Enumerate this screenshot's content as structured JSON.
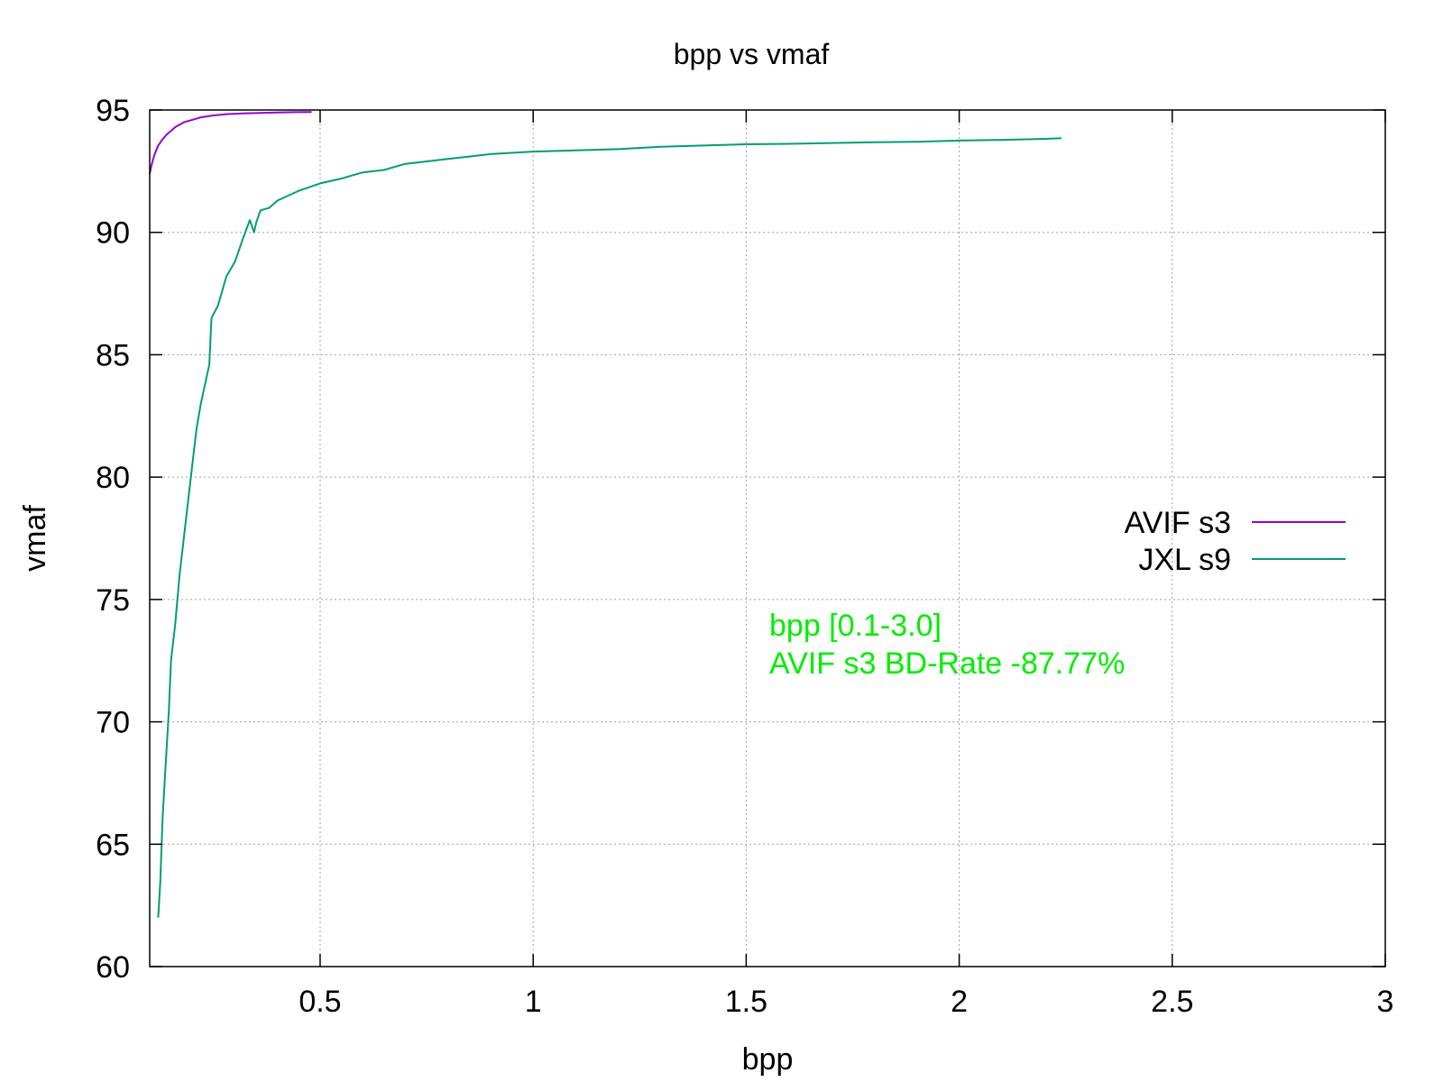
{
  "chart_data": {
    "type": "line",
    "title": "bpp vs vmaf",
    "xlabel": "bpp",
    "ylabel": "vmaf",
    "xlim": [
      0.1,
      3.0
    ],
    "ylim": [
      60,
      95
    ],
    "xticks": [
      0.5,
      1,
      1.5,
      2,
      2.5,
      3
    ],
    "xtick_labels": [
      "0.5",
      "1",
      "1.5",
      "2",
      "2.5",
      "3"
    ],
    "yticks": [
      60,
      65,
      70,
      75,
      80,
      85,
      90,
      95
    ],
    "ytick_labels": [
      "60",
      "65",
      "70",
      "75",
      "80",
      "85",
      "90",
      "95"
    ],
    "grid": true,
    "legend_position": "right",
    "annotations": [
      "bpp [0.1-3.0]",
      "AVIF s3 BD-Rate -87.77%"
    ],
    "annotation_color": "#00ee00",
    "series": [
      {
        "name": "AVIF s3",
        "color": "#9400d3",
        "points": [
          [
            0.1,
            92.4
          ],
          [
            0.105,
            92.8
          ],
          [
            0.11,
            93.1
          ],
          [
            0.115,
            93.35
          ],
          [
            0.12,
            93.55
          ],
          [
            0.13,
            93.8
          ],
          [
            0.14,
            94.0
          ],
          [
            0.15,
            94.15
          ],
          [
            0.16,
            94.3
          ],
          [
            0.17,
            94.4
          ],
          [
            0.18,
            94.5
          ],
          [
            0.2,
            94.6
          ],
          [
            0.22,
            94.7
          ],
          [
            0.25,
            94.78
          ],
          [
            0.28,
            94.83
          ],
          [
            0.32,
            94.86
          ],
          [
            0.36,
            94.88
          ],
          [
            0.4,
            94.9
          ],
          [
            0.44,
            94.91
          ],
          [
            0.48,
            94.92
          ]
        ]
      },
      {
        "name": "JXL s9",
        "color": "#009e73",
        "points": [
          [
            0.12,
            62.0
          ],
          [
            0.125,
            63.5
          ],
          [
            0.13,
            66.0
          ],
          [
            0.135,
            67.5
          ],
          [
            0.14,
            69.0
          ],
          [
            0.145,
            70.5
          ],
          [
            0.15,
            72.5
          ],
          [
            0.16,
            74.0
          ],
          [
            0.17,
            76.0
          ],
          [
            0.18,
            77.5
          ],
          [
            0.19,
            79.0
          ],
          [
            0.2,
            80.5
          ],
          [
            0.21,
            82.0
          ],
          [
            0.22,
            83.0
          ],
          [
            0.23,
            83.8
          ],
          [
            0.24,
            84.6
          ],
          [
            0.245,
            86.5
          ],
          [
            0.26,
            87.0
          ],
          [
            0.27,
            87.6
          ],
          [
            0.28,
            88.2
          ],
          [
            0.3,
            88.8
          ],
          [
            0.32,
            89.8
          ],
          [
            0.335,
            90.5
          ],
          [
            0.345,
            90.0
          ],
          [
            0.35,
            90.4
          ],
          [
            0.36,
            90.9
          ],
          [
            0.38,
            91.0
          ],
          [
            0.4,
            91.3
          ],
          [
            0.45,
            91.7
          ],
          [
            0.5,
            92.0
          ],
          [
            0.55,
            92.2
          ],
          [
            0.6,
            92.45
          ],
          [
            0.65,
            92.55
          ],
          [
            0.7,
            92.8
          ],
          [
            0.75,
            92.9
          ],
          [
            0.8,
            93.0
          ],
          [
            0.85,
            93.1
          ],
          [
            0.9,
            93.2
          ],
          [
            1.0,
            93.3
          ],
          [
            1.1,
            93.35
          ],
          [
            1.2,
            93.4
          ],
          [
            1.3,
            93.5
          ],
          [
            1.4,
            93.55
          ],
          [
            1.5,
            93.6
          ],
          [
            1.6,
            93.62
          ],
          [
            1.7,
            93.65
          ],
          [
            1.8,
            93.68
          ],
          [
            1.9,
            93.7
          ],
          [
            2.0,
            93.75
          ],
          [
            2.1,
            93.78
          ],
          [
            2.2,
            93.82
          ],
          [
            2.24,
            93.85
          ]
        ]
      }
    ]
  }
}
